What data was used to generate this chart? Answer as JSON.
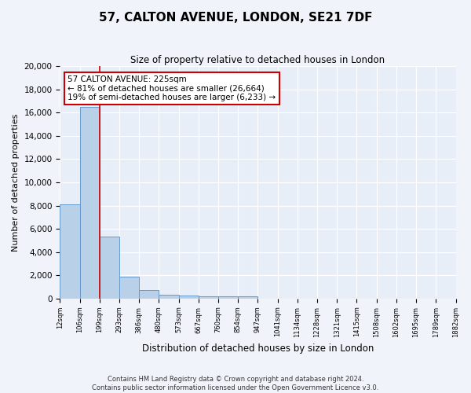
{
  "title": "57, CALTON AVENUE, LONDON, SE21 7DF",
  "subtitle": "Size of property relative to detached houses in London",
  "xlabel": "Distribution of detached houses by size in London",
  "ylabel": "Number of detached properties",
  "bar_color": "#b8d0e8",
  "bar_edge_color": "#6699cc",
  "background_color": "#e8eef8",
  "fig_background_color": "#f0f4fa",
  "grid_color": "#ffffff",
  "red_line_color": "#cc0000",
  "bin_labels": [
    "12sqm",
    "106sqm",
    "199sqm",
    "293sqm",
    "386sqm",
    "480sqm",
    "573sqm",
    "667sqm",
    "760sqm",
    "854sqm",
    "947sqm",
    "1041sqm",
    "1134sqm",
    "1228sqm",
    "1321sqm",
    "1415sqm",
    "1508sqm",
    "1602sqm",
    "1695sqm",
    "1789sqm",
    "1882sqm"
  ],
  "bar_heights": [
    8100,
    16500,
    5300,
    1850,
    700,
    310,
    230,
    200,
    190,
    160,
    0,
    0,
    0,
    0,
    0,
    0,
    0,
    0,
    0,
    0
  ],
  "ylim": [
    0,
    20000
  ],
  "yticks": [
    0,
    2000,
    4000,
    6000,
    8000,
    10000,
    12000,
    14000,
    16000,
    18000,
    20000
  ],
  "red_line_x": 2.0,
  "annotation_text": "57 CALTON AVENUE: 225sqm\n← 81% of detached houses are smaller (26,664)\n19% of semi-detached houses are larger (6,233) →",
  "footer_line1": "Contains HM Land Registry data © Crown copyright and database right 2024.",
  "footer_line2": "Contains public sector information licensed under the Open Government Licence v3.0.",
  "figsize": [
    6.0,
    5.0
  ],
  "dpi": 100
}
